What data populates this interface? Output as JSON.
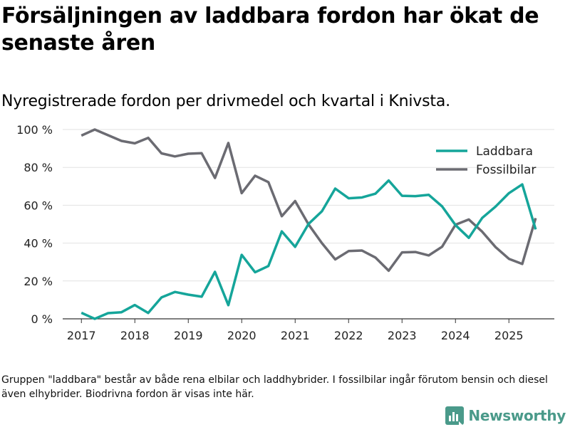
{
  "title": "Försäljningen av laddbara fordon har ökat de senaste åren",
  "subtitle": "Nyregistrerade fordon per drivmedel och kvartal i Knivsta.",
  "footnote": "Gruppen \"laddbara\" består av både rena elbilar och laddhybrider. I fossilbilar ingår förutom bensin och diesel även elhybrider. Biodrivna fordon är visas inte här.",
  "brand": {
    "name": "Newsworthy",
    "icon": "newsworthy-logo-icon",
    "color": "#4a9a8a"
  },
  "chart_data": {
    "type": "line",
    "title": "Nyregistrerade fordon per drivmedel och kvartal i Knivsta.",
    "xlabel": "",
    "ylabel": "",
    "xlim": [
      2016.65,
      2025.85
    ],
    "ylim": [
      0,
      100
    ],
    "y_ticks": [
      0,
      20,
      40,
      60,
      80,
      100
    ],
    "y_tick_labels": [
      "0 %",
      "20 %",
      "40 %",
      "60 %",
      "80 %",
      "100 %"
    ],
    "x_ticks": [
      2017,
      2018,
      2019,
      2020,
      2021,
      2022,
      2023,
      2024,
      2025
    ],
    "x_tick_labels": [
      "2017",
      "2018",
      "2019",
      "2020",
      "2021",
      "2022",
      "2023",
      "2024",
      "2025"
    ],
    "grid": "horizontal",
    "legend_position": "top-right",
    "x": [
      2017.0,
      2017.25,
      2017.5,
      2017.75,
      2018.0,
      2018.25,
      2018.5,
      2018.75,
      2019.0,
      2019.25,
      2019.5,
      2019.75,
      2020.0,
      2020.25,
      2020.5,
      2020.75,
      2021.0,
      2021.25,
      2021.5,
      2021.75,
      2022.0,
      2022.25,
      2022.5,
      2022.75,
      2023.0,
      2023.25,
      2023.5,
      2023.75,
      2024.0,
      2024.25,
      2024.5,
      2024.75,
      2025.0,
      2025.25,
      2025.5
    ],
    "series": [
      {
        "name": "Laddbara",
        "color": "#15a59a",
        "values": [
          3.2,
          0.0,
          3.0,
          3.5,
          7.3,
          3.1,
          11.3,
          14.2,
          12.8,
          11.7,
          24.8,
          7.2,
          33.8,
          24.6,
          27.9,
          46.2,
          38.0,
          50.1,
          56.8,
          68.8,
          63.7,
          64.1,
          66.1,
          73.1,
          65.0,
          64.8,
          65.5,
          59.4,
          49.5,
          42.8,
          53.3,
          59.3,
          66.4,
          71.0,
          47.2
        ]
      },
      {
        "name": "Fossilbilar",
        "color": "#6b6b72",
        "values": [
          96.8,
          100.0,
          97.0,
          94.0,
          92.7,
          95.6,
          87.4,
          85.8,
          87.2,
          87.5,
          74.4,
          92.9,
          66.4,
          75.6,
          72.2,
          54.2,
          62.2,
          49.9,
          40.0,
          31.4,
          35.8,
          36.1,
          32.4,
          25.4,
          35.1,
          35.3,
          33.5,
          38.1,
          49.7,
          52.5,
          46.0,
          37.9,
          31.7,
          29.0,
          53.2
        ]
      }
    ]
  }
}
